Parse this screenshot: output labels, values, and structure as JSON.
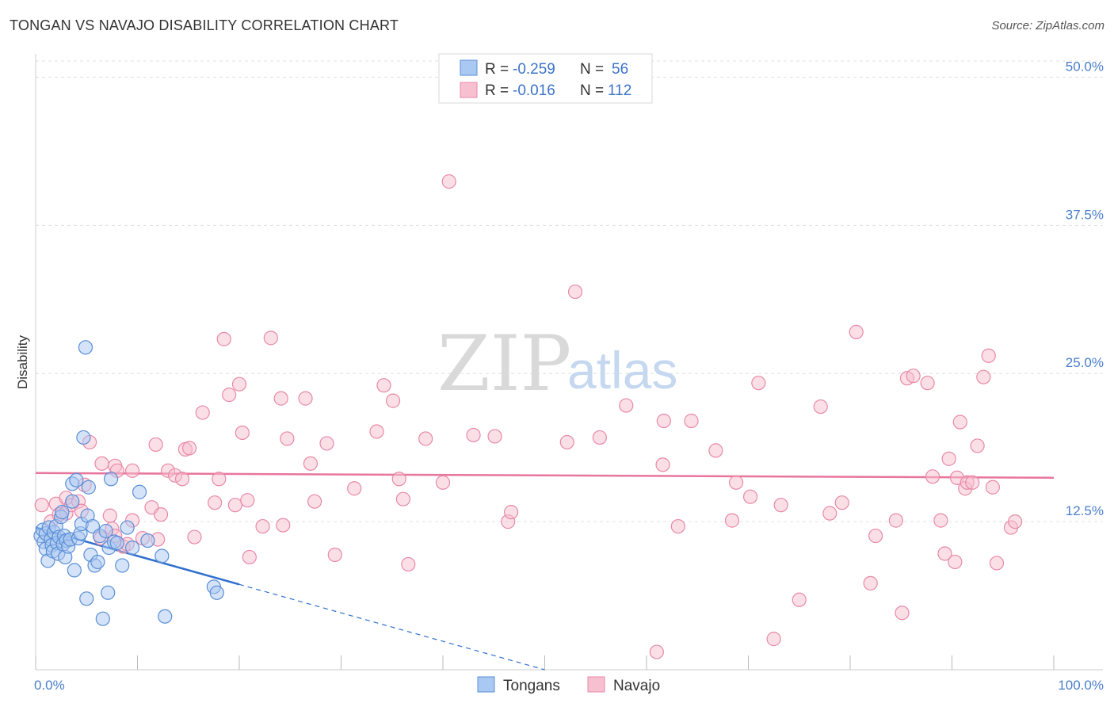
{
  "header": {
    "title": "TONGAN VS NAVAJO DISABILITY CORRELATION CHART",
    "source": "Source: ZipAtlas.com"
  },
  "watermark": {
    "zip": "ZIP",
    "atlas": "atlas"
  },
  "legend": {
    "rows": [
      {
        "r_label": "R =",
        "r_value": "-0.259",
        "n_label": "N =",
        "n_value": "56"
      },
      {
        "r_label": "R =",
        "r_value": "-0.016",
        "n_label": "N =",
        "n_value": "112"
      }
    ]
  },
  "colors": {
    "tongans_fill": "#a9c8f2",
    "tongans_stroke": "#5b8fd6",
    "tongans_line": "#2f6fce",
    "navajo_fill": "#f7c0d0",
    "navajo_stroke": "#e889a8",
    "navajo_line": "#e8769c",
    "grid": "#e0e0e0",
    "tick_label": "#4a7ecb"
  },
  "chart_data": {
    "type": "scatter",
    "title": "TONGAN VS NAVAJO DISABILITY CORRELATION CHART",
    "xlabel": "",
    "ylabel": "Disability",
    "xlim": [
      0,
      100
    ],
    "ylim": [
      0,
      51.5
    ],
    "x_ticks": [
      {
        "value": 0,
        "label": "0.0%"
      },
      {
        "value": 100,
        "label": "100.0%"
      }
    ],
    "x_minor_ticks": [
      0,
      10,
      20,
      30,
      40,
      50,
      60,
      70,
      80,
      90,
      100
    ],
    "y_ticks": [
      {
        "value": 12.5,
        "label": "12.5%"
      },
      {
        "value": 25.0,
        "label": "25.0%"
      },
      {
        "value": 37.5,
        "label": "37.5%"
      },
      {
        "value": 50.0,
        "label": "50.0%"
      }
    ],
    "grid": true,
    "series": [
      {
        "name": "Tongans",
        "R": -0.259,
        "N": 56,
        "trend": {
          "x0": 0,
          "y0": 12.0,
          "x1": 20,
          "y1": 7.2,
          "dash_to_x": 50,
          "dash_to_y": 0
        },
        "points": [
          [
            0.5,
            11.3
          ],
          [
            0.7,
            11.8
          ],
          [
            0.8,
            10.8
          ],
          [
            1.0,
            11.5
          ],
          [
            1.0,
            10.2
          ],
          [
            1.2,
            9.2
          ],
          [
            1.3,
            12.0
          ],
          [
            1.5,
            11.0
          ],
          [
            1.6,
            10.5
          ],
          [
            1.7,
            10.0
          ],
          [
            1.8,
            11.6
          ],
          [
            2.0,
            12.1
          ],
          [
            2.1,
            10.7
          ],
          [
            2.2,
            9.8
          ],
          [
            2.3,
            11.2
          ],
          [
            2.5,
            12.9
          ],
          [
            2.6,
            13.3
          ],
          [
            2.7,
            10.6
          ],
          [
            2.8,
            11.3
          ],
          [
            2.9,
            9.5
          ],
          [
            3.0,
            10.9
          ],
          [
            3.2,
            10.4
          ],
          [
            3.4,
            11.0
          ],
          [
            3.6,
            14.2
          ],
          [
            3.6,
            15.7
          ],
          [
            3.8,
            8.4
          ],
          [
            4.0,
            16.0
          ],
          [
            4.2,
            11.1
          ],
          [
            4.4,
            11.5
          ],
          [
            4.5,
            12.3
          ],
          [
            4.7,
            19.6
          ],
          [
            4.9,
            27.2
          ],
          [
            5.0,
            6.0
          ],
          [
            5.2,
            15.4
          ],
          [
            5.1,
            13.0
          ],
          [
            5.4,
            9.7
          ],
          [
            5.6,
            12.1
          ],
          [
            5.8,
            8.8
          ],
          [
            6.1,
            9.1
          ],
          [
            6.3,
            11.3
          ],
          [
            6.6,
            4.3
          ],
          [
            6.9,
            11.7
          ],
          [
            7.1,
            6.5
          ],
          [
            7.2,
            10.3
          ],
          [
            7.4,
            16.1
          ],
          [
            7.7,
            10.8
          ],
          [
            8.0,
            10.7
          ],
          [
            8.5,
            8.8
          ],
          [
            9.0,
            12.0
          ],
          [
            9.5,
            10.3
          ],
          [
            10.2,
            15.0
          ],
          [
            11.0,
            10.9
          ],
          [
            12.4,
            9.6
          ],
          [
            12.7,
            4.5
          ],
          [
            17.5,
            7.0
          ],
          [
            17.8,
            6.5
          ]
        ]
      },
      {
        "name": "Navajo",
        "R": -0.016,
        "N": 112,
        "trend": {
          "x0": 0,
          "y0": 16.6,
          "x1": 100,
          "y1": 16.2
        },
        "points": [
          [
            0.6,
            13.9
          ],
          [
            1.5,
            12.5
          ],
          [
            2.0,
            14.0
          ],
          [
            2.3,
            13.1
          ],
          [
            3.0,
            14.5
          ],
          [
            3.0,
            13.2
          ],
          [
            3.5,
            13.9
          ],
          [
            4.2,
            14.2
          ],
          [
            4.8,
            15.6
          ],
          [
            5.3,
            19.2
          ],
          [
            4.5,
            13.4
          ],
          [
            6.5,
            17.4
          ],
          [
            6.4,
            11.1
          ],
          [
            7.3,
            13.0
          ],
          [
            7.8,
            17.2
          ],
          [
            8.0,
            16.8
          ],
          [
            7.5,
            11.9
          ],
          [
            9.5,
            12.6
          ],
          [
            7.8,
            11.3
          ],
          [
            8.6,
            10.4
          ],
          [
            9.0,
            10.6
          ],
          [
            9.5,
            16.8
          ],
          [
            10.5,
            11.1
          ],
          [
            11.4,
            13.7
          ],
          [
            11.8,
            19.0
          ],
          [
            12.3,
            13.1
          ],
          [
            12.0,
            11.0
          ],
          [
            13.0,
            16.8
          ],
          [
            13.7,
            16.4
          ],
          [
            14.4,
            16.1
          ],
          [
            14.7,
            18.6
          ],
          [
            15.1,
            18.7
          ],
          [
            15.6,
            11.2
          ],
          [
            16.4,
            21.7
          ],
          [
            17.6,
            14.1
          ],
          [
            18.0,
            16.1
          ],
          [
            18.5,
            27.9
          ],
          [
            19.0,
            23.2
          ],
          [
            19.6,
            13.9
          ],
          [
            20.0,
            24.1
          ],
          [
            20.3,
            20.0
          ],
          [
            20.8,
            14.3
          ],
          [
            21.0,
            9.5
          ],
          [
            22.3,
            12.1
          ],
          [
            23.1,
            28.0
          ],
          [
            24.1,
            22.9
          ],
          [
            24.3,
            12.2
          ],
          [
            24.7,
            19.5
          ],
          [
            26.5,
            22.9
          ],
          [
            27.0,
            17.4
          ],
          [
            27.4,
            14.2
          ],
          [
            28.6,
            19.1
          ],
          [
            29.4,
            9.7
          ],
          [
            31.3,
            15.3
          ],
          [
            33.5,
            20.1
          ],
          [
            34.2,
            24.0
          ],
          [
            35.1,
            22.7
          ],
          [
            35.7,
            16.1
          ],
          [
            36.1,
            14.4
          ],
          [
            36.6,
            8.9
          ],
          [
            38.3,
            19.5
          ],
          [
            40.0,
            15.8
          ],
          [
            40.6,
            41.2
          ],
          [
            43.0,
            19.8
          ],
          [
            45.1,
            19.7
          ],
          [
            46.4,
            12.5
          ],
          [
            46.7,
            13.3
          ],
          [
            52.2,
            19.2
          ],
          [
            53.0,
            31.9
          ],
          [
            55.4,
            19.6
          ],
          [
            58.0,
            22.3
          ],
          [
            61.0,
            1.5
          ],
          [
            61.6,
            17.3
          ],
          [
            61.7,
            21.0
          ],
          [
            63.1,
            12.1
          ],
          [
            64.4,
            21.0
          ],
          [
            66.8,
            18.5
          ],
          [
            68.4,
            12.6
          ],
          [
            68.8,
            15.8
          ],
          [
            70.2,
            14.6
          ],
          [
            71.0,
            24.2
          ],
          [
            72.5,
            2.6
          ],
          [
            73.2,
            13.9
          ],
          [
            75.0,
            5.9
          ],
          [
            77.1,
            22.2
          ],
          [
            78.0,
            13.2
          ],
          [
            79.2,
            14.1
          ],
          [
            80.6,
            28.5
          ],
          [
            82.0,
            7.3
          ],
          [
            82.5,
            11.3
          ],
          [
            84.5,
            12.6
          ],
          [
            85.1,
            4.8
          ],
          [
            85.6,
            24.6
          ],
          [
            86.2,
            24.8
          ],
          [
            87.6,
            24.2
          ],
          [
            88.1,
            16.3
          ],
          [
            88.9,
            12.6
          ],
          [
            89.3,
            9.8
          ],
          [
            89.7,
            17.8
          ],
          [
            90.3,
            9.1
          ],
          [
            90.5,
            16.2
          ],
          [
            90.8,
            20.9
          ],
          [
            91.3,
            15.3
          ],
          [
            91.5,
            15.8
          ],
          [
            92.0,
            15.8
          ],
          [
            92.5,
            18.9
          ],
          [
            93.1,
            24.7
          ],
          [
            93.6,
            26.5
          ],
          [
            94.0,
            15.4
          ],
          [
            94.4,
            9.0
          ],
          [
            95.8,
            12.0
          ],
          [
            96.2,
            12.5
          ]
        ]
      }
    ]
  }
}
